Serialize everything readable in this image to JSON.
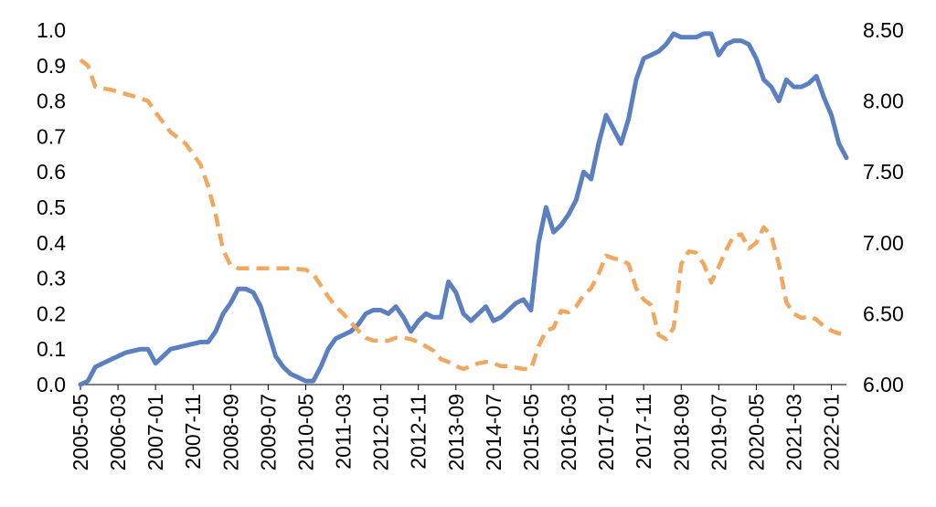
{
  "chart_data": {
    "type": "line",
    "title": "",
    "xlabel": "",
    "ylabel": "",
    "x_tick_labels": [
      "2005-05",
      "2006-03",
      "2007-01",
      "2007-11",
      "2008-09",
      "2009-07",
      "2010-05",
      "2011-03",
      "2012-01",
      "2012-11",
      "2013-09",
      "2014-07",
      "2015-05",
      "2016-03",
      "2017-01",
      "2017-11",
      "2018-09",
      "2019-07",
      "2020-05",
      "2021-03",
      "2022-01"
    ],
    "y_left": {
      "lim": [
        0.0,
        1.0
      ],
      "ticks": [
        "0.0",
        "0.1",
        "0.2",
        "0.3",
        "0.4",
        "0.5",
        "0.6",
        "0.7",
        "0.8",
        "0.9",
        "1.0"
      ]
    },
    "y_right": {
      "lim": [
        6.0,
        8.5
      ],
      "ticks": [
        "6.00",
        "6.50",
        "7.00",
        "7.50",
        "8.00",
        "8.50"
      ]
    },
    "grid": false,
    "legend": "none",
    "series": [
      {
        "axis": "left",
        "color": "#5B7FBF",
        "style": "solid",
        "points": [
          [
            "2005-05",
            0.0
          ],
          [
            "2005-07",
            0.01
          ],
          [
            "2005-09",
            0.05
          ],
          [
            "2006-01",
            0.07
          ],
          [
            "2006-05",
            0.09
          ],
          [
            "2006-09",
            0.1
          ],
          [
            "2006-11",
            0.1
          ],
          [
            "2007-01",
            0.06
          ],
          [
            "2007-03",
            0.08
          ],
          [
            "2007-05",
            0.1
          ],
          [
            "2007-09",
            0.11
          ],
          [
            "2008-01",
            0.12
          ],
          [
            "2008-03",
            0.12
          ],
          [
            "2008-05",
            0.15
          ],
          [
            "2008-07",
            0.2
          ],
          [
            "2008-09",
            0.23
          ],
          [
            "2008-11",
            0.27
          ],
          [
            "2009-01",
            0.27
          ],
          [
            "2009-03",
            0.26
          ],
          [
            "2009-05",
            0.22
          ],
          [
            "2009-07",
            0.15
          ],
          [
            "2009-09",
            0.08
          ],
          [
            "2009-11",
            0.05
          ],
          [
            "2010-01",
            0.03
          ],
          [
            "2010-03",
            0.02
          ],
          [
            "2010-05",
            0.01
          ],
          [
            "2010-07",
            0.01
          ],
          [
            "2010-09",
            0.05
          ],
          [
            "2010-11",
            0.1
          ],
          [
            "2011-01",
            0.13
          ],
          [
            "2011-03",
            0.14
          ],
          [
            "2011-05",
            0.15
          ],
          [
            "2011-07",
            0.17
          ],
          [
            "2011-09",
            0.2
          ],
          [
            "2011-11",
            0.21
          ],
          [
            "2012-01",
            0.21
          ],
          [
            "2012-03",
            0.2
          ],
          [
            "2012-05",
            0.22
          ],
          [
            "2012-07",
            0.19
          ],
          [
            "2012-09",
            0.15
          ],
          [
            "2012-11",
            0.18
          ],
          [
            "2013-01",
            0.2
          ],
          [
            "2013-03",
            0.19
          ],
          [
            "2013-05",
            0.19
          ],
          [
            "2013-07",
            0.29
          ],
          [
            "2013-09",
            0.26
          ],
          [
            "2013-11",
            0.2
          ],
          [
            "2014-01",
            0.18
          ],
          [
            "2014-03",
            0.2
          ],
          [
            "2014-05",
            0.22
          ],
          [
            "2014-07",
            0.18
          ],
          [
            "2014-09",
            0.19
          ],
          [
            "2014-11",
            0.21
          ],
          [
            "2015-01",
            0.23
          ],
          [
            "2015-03",
            0.24
          ],
          [
            "2015-05",
            0.21
          ],
          [
            "2015-07",
            0.4
          ],
          [
            "2015-09",
            0.5
          ],
          [
            "2015-11",
            0.43
          ],
          [
            "2016-01",
            0.45
          ],
          [
            "2016-03",
            0.48
          ],
          [
            "2016-05",
            0.52
          ],
          [
            "2016-07",
            0.6
          ],
          [
            "2016-09",
            0.58
          ],
          [
            "2016-11",
            0.68
          ],
          [
            "2017-01",
            0.76
          ],
          [
            "2017-03",
            0.72
          ],
          [
            "2017-05",
            0.68
          ],
          [
            "2017-07",
            0.75
          ],
          [
            "2017-09",
            0.86
          ],
          [
            "2017-11",
            0.92
          ],
          [
            "2018-01",
            0.93
          ],
          [
            "2018-03",
            0.94
          ],
          [
            "2018-05",
            0.96
          ],
          [
            "2018-07",
            0.99
          ],
          [
            "2018-09",
            0.98
          ],
          [
            "2018-11",
            0.98
          ],
          [
            "2019-01",
            0.98
          ],
          [
            "2019-03",
            0.99
          ],
          [
            "2019-05",
            0.99
          ],
          [
            "2019-07",
            0.93
          ],
          [
            "2019-09",
            0.96
          ],
          [
            "2019-11",
            0.97
          ],
          [
            "2020-01",
            0.97
          ],
          [
            "2020-03",
            0.96
          ],
          [
            "2020-05",
            0.92
          ],
          [
            "2020-07",
            0.86
          ],
          [
            "2020-09",
            0.84
          ],
          [
            "2020-11",
            0.8
          ],
          [
            "2021-01",
            0.86
          ],
          [
            "2021-03",
            0.84
          ],
          [
            "2021-05",
            0.84
          ],
          [
            "2021-07",
            0.85
          ],
          [
            "2021-09",
            0.87
          ],
          [
            "2021-11",
            0.81
          ],
          [
            "2022-01",
            0.76
          ],
          [
            "2022-03",
            0.68
          ],
          [
            "2022-05",
            0.64
          ]
        ]
      },
      {
        "axis": "right",
        "color": "#F0A860",
        "style": "dashed",
        "points": [
          [
            "2005-05",
            8.29
          ],
          [
            "2005-07",
            8.25
          ],
          [
            "2005-09",
            8.1
          ],
          [
            "2006-01",
            8.08
          ],
          [
            "2006-05",
            8.05
          ],
          [
            "2006-09",
            8.02
          ],
          [
            "2006-11",
            8.0
          ],
          [
            "2007-01",
            7.92
          ],
          [
            "2007-03",
            7.85
          ],
          [
            "2007-05",
            7.78
          ],
          [
            "2007-09",
            7.7
          ],
          [
            "2008-01",
            7.55
          ],
          [
            "2008-03",
            7.4
          ],
          [
            "2008-05",
            7.2
          ],
          [
            "2008-07",
            6.95
          ],
          [
            "2008-09",
            6.84
          ],
          [
            "2008-11",
            6.82
          ],
          [
            "2009-01",
            6.82
          ],
          [
            "2009-05",
            6.82
          ],
          [
            "2009-09",
            6.82
          ],
          [
            "2010-01",
            6.82
          ],
          [
            "2010-05",
            6.81
          ],
          [
            "2010-07",
            6.78
          ],
          [
            "2010-09",
            6.7
          ],
          [
            "2010-11",
            6.62
          ],
          [
            "2011-01",
            6.55
          ],
          [
            "2011-03",
            6.5
          ],
          [
            "2011-05",
            6.44
          ],
          [
            "2011-07",
            6.38
          ],
          [
            "2011-09",
            6.33
          ],
          [
            "2011-11",
            6.31
          ],
          [
            "2012-01",
            6.31
          ],
          [
            "2012-03",
            6.31
          ],
          [
            "2012-05",
            6.33
          ],
          [
            "2012-07",
            6.33
          ],
          [
            "2012-09",
            6.32
          ],
          [
            "2012-11",
            6.3
          ],
          [
            "2013-01",
            6.27
          ],
          [
            "2013-03",
            6.24
          ],
          [
            "2013-05",
            6.18
          ],
          [
            "2013-07",
            6.16
          ],
          [
            "2013-09",
            6.13
          ],
          [
            "2013-11",
            6.11
          ],
          [
            "2014-01",
            6.13
          ],
          [
            "2014-03",
            6.15
          ],
          [
            "2014-05",
            6.16
          ],
          [
            "2014-07",
            6.15
          ],
          [
            "2014-09",
            6.13
          ],
          [
            "2014-11",
            6.13
          ],
          [
            "2015-01",
            6.12
          ],
          [
            "2015-03",
            6.11
          ],
          [
            "2015-05",
            6.11
          ],
          [
            "2015-07",
            6.27
          ],
          [
            "2015-09",
            6.38
          ],
          [
            "2015-11",
            6.4
          ],
          [
            "2016-01",
            6.52
          ],
          [
            "2016-03",
            6.51
          ],
          [
            "2016-05",
            6.55
          ],
          [
            "2016-07",
            6.63
          ],
          [
            "2016-09",
            6.68
          ],
          [
            "2016-11",
            6.78
          ],
          [
            "2017-01",
            6.91
          ],
          [
            "2017-03",
            6.89
          ],
          [
            "2017-05",
            6.88
          ],
          [
            "2017-07",
            6.85
          ],
          [
            "2017-09",
            6.68
          ],
          [
            "2017-11",
            6.6
          ],
          [
            "2018-01",
            6.56
          ],
          [
            "2018-03",
            6.35
          ],
          [
            "2018-05",
            6.32
          ],
          [
            "2018-07",
            6.4
          ],
          [
            "2018-09",
            6.85
          ],
          [
            "2018-11",
            6.94
          ],
          [
            "2019-01",
            6.93
          ],
          [
            "2019-03",
            6.85
          ],
          [
            "2019-05",
            6.72
          ],
          [
            "2019-07",
            6.83
          ],
          [
            "2019-09",
            6.95
          ],
          [
            "2019-11",
            7.05
          ],
          [
            "2020-01",
            7.06
          ],
          [
            "2020-03",
            6.96
          ],
          [
            "2020-05",
            7.0
          ],
          [
            "2020-07",
            7.11
          ],
          [
            "2020-09",
            7.05
          ],
          [
            "2020-11",
            6.85
          ],
          [
            "2021-01",
            6.58
          ],
          [
            "2021-03",
            6.5
          ],
          [
            "2021-05",
            6.47
          ],
          [
            "2021-07",
            6.48
          ],
          [
            "2021-09",
            6.46
          ],
          [
            "2021-11",
            6.41
          ],
          [
            "2022-01",
            6.38
          ],
          [
            "2022-03",
            6.36
          ],
          [
            "2022-05",
            6.35
          ]
        ]
      }
    ]
  }
}
